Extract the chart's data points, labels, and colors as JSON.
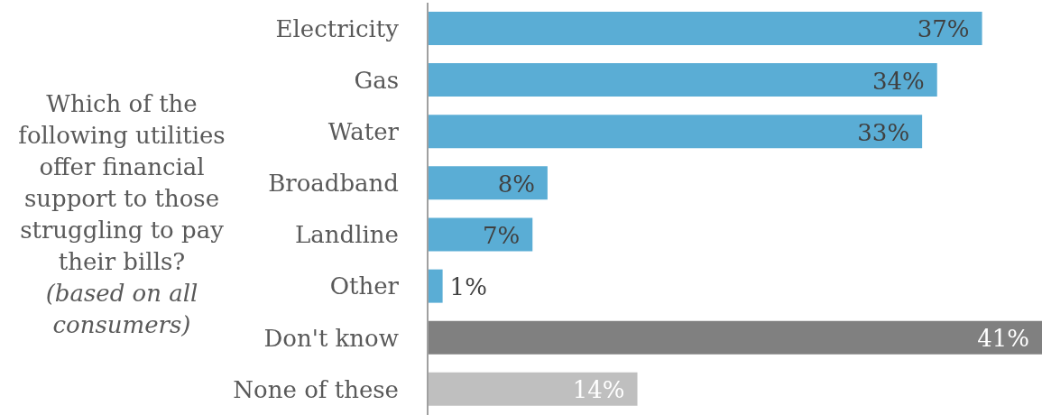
{
  "chart_data": {
    "type": "bar",
    "orientation": "horizontal",
    "title": "Which of the following utilities offer financial support to those struggling to pay their bills?",
    "subtitle": "(based on all consumers)",
    "categories": [
      "Electricity",
      "Gas",
      "Water",
      "Broadband",
      "Landline",
      "Other",
      "Don't know",
      "None of these"
    ],
    "values": [
      37,
      34,
      33,
      8,
      7,
      1,
      41,
      14
    ],
    "colors": [
      "#5aadd5",
      "#5aadd5",
      "#5aadd5",
      "#5aadd5",
      "#5aadd5",
      "#5aadd5",
      "#808080",
      "#bfbfbf"
    ],
    "value_labels": [
      "37%",
      "34%",
      "33%",
      "8%",
      "7%",
      "1%",
      "41%",
      "14%"
    ]
  }
}
